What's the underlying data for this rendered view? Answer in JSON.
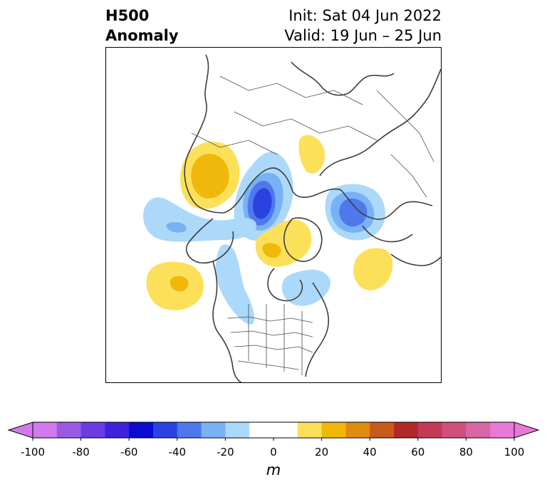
{
  "header": {
    "field_line1": "H500",
    "field_line2": "Anomaly",
    "init_text": "Init: Sat 04 Jun 2022",
    "valid_text": "Valid: 19 Jun – 25 Jun"
  },
  "map": {
    "projection": "north-polar-stereographic",
    "anomaly_centers": [
      {
        "sign": "positive",
        "region": "northeast-siberia",
        "level": 30
      },
      {
        "sign": "negative",
        "region": "laptev-sea",
        "level": -60
      },
      {
        "sign": "positive",
        "region": "far-north-russia",
        "level": 20
      },
      {
        "sign": "negative",
        "region": "scandinavia",
        "level": -50
      },
      {
        "sign": "positive",
        "region": "canadian-arctic-archipelago",
        "level": 20
      },
      {
        "sign": "negative",
        "region": "bering-strait",
        "level": -30
      },
      {
        "sign": "positive",
        "region": "north-pacific",
        "level": 30
      },
      {
        "sign": "positive",
        "region": "north-atlantic",
        "level": 20
      },
      {
        "sign": "negative",
        "region": "hudson-bay",
        "level": -20
      },
      {
        "sign": "negative",
        "region": "western-canada",
        "level": -20
      }
    ]
  },
  "colorbar": {
    "unit": "m",
    "ticks": [
      "-100",
      "-80",
      "-60",
      "-40",
      "-20",
      "0",
      "20",
      "40",
      "60",
      "80",
      "100"
    ],
    "levels": [
      -100,
      -90,
      -80,
      -70,
      -60,
      -50,
      -40,
      -30,
      -20,
      -10,
      10,
      20,
      30,
      40,
      50,
      60,
      70,
      80,
      90,
      100
    ],
    "colors": [
      "#d17aeb",
      "#9b5ae3",
      "#6a3ce1",
      "#3e22db",
      "#0a0ad0",
      "#2a43e0",
      "#4f78ec",
      "#79b1f5",
      "#acd9f9",
      "#ffffff",
      "#fde05a",
      "#f0b80a",
      "#de8b10",
      "#c85a1e",
      "#b22828",
      "#c23a55",
      "#d14f7b",
      "#d865a6",
      "#e879d7"
    ],
    "under_color": "#d17aeb",
    "over_color": "#e879d7"
  }
}
